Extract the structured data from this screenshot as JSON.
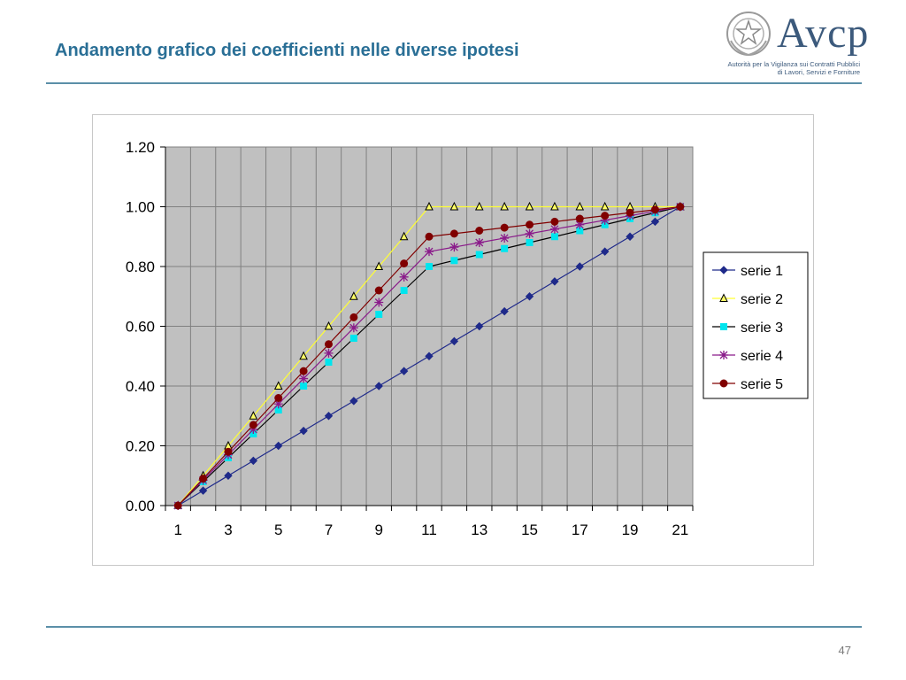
{
  "slide": {
    "title": "Andamento grafico dei coefficienti nelle diverse ipotesi",
    "page_number": "47"
  },
  "logo": {
    "wordmark": "Avcp",
    "subtitle_line1": "Autorità per la Vigilanza sui Contratti Pubblici",
    "subtitle_line2": "di Lavori, Servizi e Forniture",
    "emblem_icon": "italian-republic-emblem-icon"
  },
  "colors": {
    "title": "#2a6f96",
    "plot_background": "#c0c0c0",
    "grid": "#808080"
  },
  "chart_data": {
    "type": "line",
    "title": "",
    "xlabel": "",
    "ylabel": "",
    "x": [
      1,
      2,
      3,
      4,
      5,
      6,
      7,
      8,
      9,
      10,
      11,
      12,
      13,
      14,
      15,
      16,
      17,
      18,
      19,
      20,
      21
    ],
    "x_tick_labels": [
      "1",
      "3",
      "5",
      "7",
      "9",
      "11",
      "13",
      "15",
      "17",
      "19",
      "21"
    ],
    "y_tick_labels": [
      "0.00",
      "0.20",
      "0.40",
      "0.60",
      "0.80",
      "1.00",
      "1.20"
    ],
    "ylim": [
      0,
      1.2
    ],
    "grid": true,
    "legend_position": "right",
    "series": [
      {
        "name": "serie 1",
        "color": "#1f2a8a",
        "marker": "diamond",
        "line_color": "#1f2a8a",
        "values": [
          0,
          0.05,
          0.1,
          0.15,
          0.2,
          0.25,
          0.3,
          0.35,
          0.4,
          0.45,
          0.5,
          0.55,
          0.6,
          0.65,
          0.7,
          0.75,
          0.8,
          0.85,
          0.9,
          0.95,
          1.0
        ]
      },
      {
        "name": "serie 2",
        "color": "#ffff66",
        "marker": "triangle",
        "line_color": "#ffff33",
        "values": [
          0,
          0.1,
          0.2,
          0.3,
          0.4,
          0.5,
          0.6,
          0.7,
          0.8,
          0.9,
          1.0,
          1.0,
          1.0,
          1.0,
          1.0,
          1.0,
          1.0,
          1.0,
          1.0,
          1.0,
          1.0
        ]
      },
      {
        "name": "serie 3",
        "color": "#00e5ee",
        "marker": "square",
        "line_color": "#000000",
        "values": [
          0,
          0.08,
          0.16,
          0.24,
          0.32,
          0.4,
          0.48,
          0.56,
          0.64,
          0.72,
          0.8,
          0.82,
          0.84,
          0.86,
          0.88,
          0.9,
          0.92,
          0.94,
          0.96,
          0.98,
          1.0
        ]
      },
      {
        "name": "serie 4",
        "color": "#8a1a8a",
        "marker": "star",
        "line_color": "#8a1a8a",
        "values": [
          0,
          0.085,
          0.17,
          0.255,
          0.34,
          0.425,
          0.51,
          0.595,
          0.68,
          0.765,
          0.85,
          0.865,
          0.88,
          0.895,
          0.91,
          0.925,
          0.94,
          0.955,
          0.97,
          0.985,
          1.0
        ]
      },
      {
        "name": "serie 5",
        "color": "#800000",
        "marker": "circle",
        "line_color": "#800000",
        "values": [
          0,
          0.09,
          0.18,
          0.27,
          0.36,
          0.45,
          0.54,
          0.63,
          0.72,
          0.81,
          0.9,
          0.91,
          0.92,
          0.93,
          0.94,
          0.95,
          0.96,
          0.97,
          0.98,
          0.99,
          1.0
        ]
      }
    ]
  }
}
